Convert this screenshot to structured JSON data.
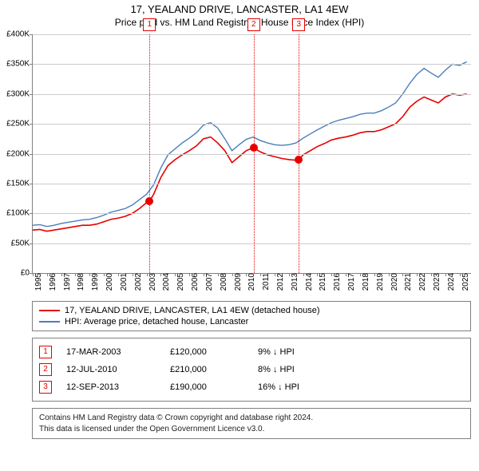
{
  "title": "17, YEALAND DRIVE, LANCASTER, LA1 4EW",
  "subtitle": "Price paid vs. HM Land Registry's House Price Index (HPI)",
  "chart": {
    "type": "line",
    "background_color": "#ffffff",
    "grid_color": "#cccccc",
    "axis_color": "#808080",
    "x_range": [
      1995,
      2025.8
    ],
    "y_range": [
      0,
      400000
    ],
    "y_ticks": [
      0,
      50000,
      100000,
      150000,
      200000,
      250000,
      300000,
      350000,
      400000
    ],
    "y_tick_labels": [
      "£0",
      "£50K",
      "£100K",
      "£150K",
      "£200K",
      "£250K",
      "£300K",
      "£350K",
      "£400K"
    ],
    "x_ticks": [
      1995,
      1996,
      1997,
      1998,
      1999,
      2000,
      2001,
      2002,
      2003,
      2004,
      2005,
      2006,
      2007,
      2008,
      2009,
      2010,
      2011,
      2012,
      2013,
      2014,
      2015,
      2016,
      2017,
      2018,
      2019,
      2020,
      2021,
      2022,
      2023,
      2024,
      2025
    ],
    "label_fontsize": 10,
    "series": [
      {
        "name": "17, YEALAND DRIVE, LANCASTER, LA1 4EW (detached house)",
        "color": "#e60000",
        "width": 1.6,
        "data": [
          [
            1995,
            72000
          ],
          [
            1995.5,
            73000
          ],
          [
            1996,
            70000
          ],
          [
            1996.5,
            72000
          ],
          [
            1997,
            74000
          ],
          [
            1997.5,
            76000
          ],
          [
            1998,
            78000
          ],
          [
            1998.5,
            80000
          ],
          [
            1999,
            80000
          ],
          [
            1999.5,
            82000
          ],
          [
            2000,
            86000
          ],
          [
            2000.5,
            90000
          ],
          [
            2001,
            92000
          ],
          [
            2001.5,
            95000
          ],
          [
            2002,
            100000
          ],
          [
            2002.5,
            108000
          ],
          [
            2003,
            118000
          ],
          [
            2003.2,
            120000
          ],
          [
            2003.5,
            132000
          ],
          [
            2004,
            160000
          ],
          [
            2004.5,
            180000
          ],
          [
            2005,
            190000
          ],
          [
            2005.5,
            198000
          ],
          [
            2006,
            205000
          ],
          [
            2006.5,
            213000
          ],
          [
            2007,
            225000
          ],
          [
            2007.5,
            228000
          ],
          [
            2008,
            218000
          ],
          [
            2008.5,
            205000
          ],
          [
            2009,
            185000
          ],
          [
            2009.5,
            195000
          ],
          [
            2010,
            205000
          ],
          [
            2010.5,
            210000
          ],
          [
            2011,
            203000
          ],
          [
            2011.5,
            198000
          ],
          [
            2012,
            195000
          ],
          [
            2012.5,
            192000
          ],
          [
            2013,
            190000
          ],
          [
            2013.5,
            189000
          ],
          [
            2013.7,
            190000
          ],
          [
            2014,
            198000
          ],
          [
            2014.5,
            205000
          ],
          [
            2015,
            212000
          ],
          [
            2015.5,
            217000
          ],
          [
            2016,
            223000
          ],
          [
            2016.5,
            226000
          ],
          [
            2017,
            228000
          ],
          [
            2017.5,
            231000
          ],
          [
            2018,
            235000
          ],
          [
            2018.5,
            237000
          ],
          [
            2019,
            237000
          ],
          [
            2019.5,
            240000
          ],
          [
            2020,
            245000
          ],
          [
            2020.5,
            250000
          ],
          [
            2021,
            262000
          ],
          [
            2021.5,
            278000
          ],
          [
            2022,
            288000
          ],
          [
            2022.5,
            295000
          ],
          [
            2023,
            290000
          ],
          [
            2023.5,
            285000
          ],
          [
            2024,
            295000
          ],
          [
            2024.5,
            300000
          ],
          [
            2025,
            298000
          ],
          [
            2025.5,
            300000
          ]
        ]
      },
      {
        "name": "HPI: Average price, detached house, Lancaster",
        "color": "#4a7ebb",
        "width": 1.4,
        "data": [
          [
            1995,
            80000
          ],
          [
            1995.5,
            81000
          ],
          [
            1996,
            78000
          ],
          [
            1996.5,
            80000
          ],
          [
            1997,
            83000
          ],
          [
            1997.5,
            85000
          ],
          [
            1998,
            87000
          ],
          [
            1998.5,
            89000
          ],
          [
            1999,
            90000
          ],
          [
            1999.5,
            93000
          ],
          [
            2000,
            97000
          ],
          [
            2000.5,
            102000
          ],
          [
            2001,
            105000
          ],
          [
            2001.5,
            108000
          ],
          [
            2002,
            114000
          ],
          [
            2002.5,
            123000
          ],
          [
            2003,
            132000
          ],
          [
            2003.5,
            148000
          ],
          [
            2004,
            176000
          ],
          [
            2004.5,
            198000
          ],
          [
            2005,
            208000
          ],
          [
            2005.5,
            218000
          ],
          [
            2006,
            226000
          ],
          [
            2006.5,
            235000
          ],
          [
            2007,
            248000
          ],
          [
            2007.5,
            252000
          ],
          [
            2008,
            243000
          ],
          [
            2008.5,
            225000
          ],
          [
            2009,
            205000
          ],
          [
            2009.5,
            215000
          ],
          [
            2010,
            224000
          ],
          [
            2010.5,
            228000
          ],
          [
            2011,
            222000
          ],
          [
            2011.5,
            218000
          ],
          [
            2012,
            215000
          ],
          [
            2012.5,
            214000
          ],
          [
            2013,
            215000
          ],
          [
            2013.5,
            218000
          ],
          [
            2014,
            226000
          ],
          [
            2014.5,
            233000
          ],
          [
            2015,
            240000
          ],
          [
            2015.5,
            246000
          ],
          [
            2016,
            252000
          ],
          [
            2016.5,
            256000
          ],
          [
            2017,
            259000
          ],
          [
            2017.5,
            262000
          ],
          [
            2018,
            266000
          ],
          [
            2018.5,
            268000
          ],
          [
            2019,
            268000
          ],
          [
            2019.5,
            272000
          ],
          [
            2020,
            278000
          ],
          [
            2020.5,
            285000
          ],
          [
            2021,
            300000
          ],
          [
            2021.5,
            318000
          ],
          [
            2022,
            333000
          ],
          [
            2022.5,
            343000
          ],
          [
            2023,
            335000
          ],
          [
            2023.5,
            328000
          ],
          [
            2024,
            340000
          ],
          [
            2024.5,
            350000
          ],
          [
            2025,
            348000
          ],
          [
            2025.5,
            354000
          ]
        ]
      }
    ],
    "events": [
      {
        "id": "1",
        "date": "17-MAR-2003",
        "x": 2003.21,
        "price_value": 120000,
        "price_label": "£120,000",
        "diff": "9% ↓ HPI",
        "color": "#e60000"
      },
      {
        "id": "2",
        "date": "12-JUL-2010",
        "x": 2010.53,
        "price_value": 210000,
        "price_label": "£210,000",
        "diff": "8% ↓ HPI",
        "color": "#e60000"
      },
      {
        "id": "3",
        "date": "12-SEP-2013",
        "x": 2013.7,
        "price_value": 190000,
        "price_label": "£190,000",
        "diff": "16% ↓ HPI",
        "color": "#e60000"
      }
    ]
  },
  "footer": {
    "line1": "Contains HM Land Registry data © Crown copyright and database right 2024.",
    "line2": "This data is licensed under the Open Government Licence v3.0."
  }
}
